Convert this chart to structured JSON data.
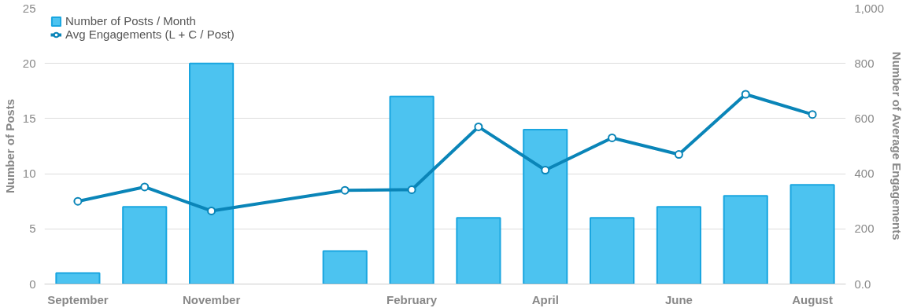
{
  "chart_data": {
    "type": "bar",
    "categories": [
      "September",
      null,
      "November",
      null,
      null,
      "February",
      null,
      "April",
      null,
      "June",
      null,
      "August"
    ],
    "series": [
      {
        "name": "Number of Posts / Month",
        "color": "#4cc3f0",
        "values": [
          1,
          7,
          20,
          null,
          3,
          17,
          6,
          14,
          6,
          7,
          8,
          9
        ]
      },
      {
        "name": "Avg Engagements (L + C / Post)",
        "type": "line",
        "axis": "y2",
        "color": "#0a85b8",
        "marker": "circle",
        "values": [
          300,
          352,
          265,
          null,
          340,
          342,
          570,
          413,
          530,
          470,
          688,
          615
        ]
      }
    ],
    "ylabel": "Number of Posts",
    "y2label": "Number of Average Engagements",
    "ylim": [
      0,
      25
    ],
    "yticks": [
      0,
      5,
      10,
      15,
      20,
      25
    ],
    "y2lim": [
      0,
      1000
    ],
    "y2ticks": [
      {
        "value": 0,
        "label": "0.0"
      },
      200,
      400,
      600,
      800,
      {
        "value": 1000,
        "label": "1,000"
      }
    ],
    "grid": "y",
    "legend": "top left",
    "line_style": "solid"
  }
}
